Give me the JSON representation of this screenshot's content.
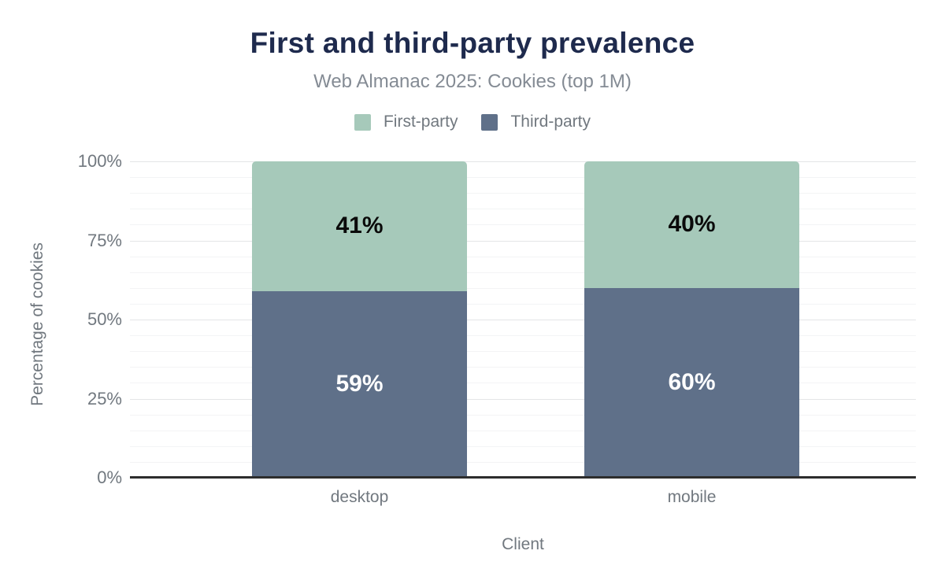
{
  "chart_data": {
    "type": "bar",
    "stacked": true,
    "title": "First and third-party prevalence",
    "subtitle": "Web Almanac 2025: Cookies (top 1M)",
    "xlabel": "Client",
    "ylabel": "Percentage of cookies",
    "categories": [
      "desktop",
      "mobile"
    ],
    "series": [
      {
        "name": "Third-party",
        "values": [
          59,
          60
        ],
        "color": "#5f7089",
        "label_color": "#ffffff"
      },
      {
        "name": "First-party",
        "values": [
          41,
          40
        ],
        "color": "#a6c9ba",
        "label_color": "#0a0a0a"
      }
    ],
    "legend_order": [
      "First-party",
      "Third-party"
    ],
    "legend_position": "top",
    "ylim": [
      0,
      100
    ],
    "ytick_step": 25,
    "ytick_labels": [
      "0%",
      "25%",
      "50%",
      "75%",
      "100%"
    ],
    "minor_grid_step": 5,
    "grid": true,
    "value_suffix": "%"
  },
  "colors": {
    "background": "#ffffff",
    "title": "#1e2a4d",
    "subtitle": "#848b94",
    "axis_text": "#71787f",
    "major_grid": "#e4e5e7",
    "minor_grid": "#f3f4f5",
    "baseline": "#2d2d2d"
  }
}
